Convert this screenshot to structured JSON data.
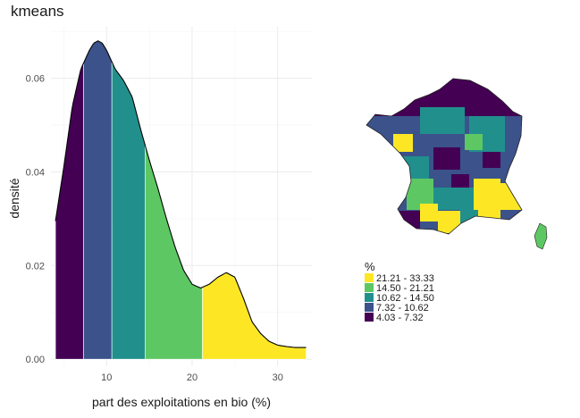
{
  "chart_data": [
    {
      "type": "area",
      "title": "kmeans",
      "xlabel": "part des exploitations en bio (%)",
      "ylabel": "densité",
      "xlim": [
        3.5,
        34.0
      ],
      "ylim": [
        -0.0015,
        0.071
      ],
      "x_ticks": [
        10,
        20,
        30
      ],
      "y_ticks": [
        0.0,
        0.02,
        0.04,
        0.06
      ],
      "y_tick_labels": [
        "0.00",
        "0.02",
        "0.04",
        "0.06"
      ],
      "grid": true,
      "series": [
        {
          "x": [
            4.03,
            5,
            6,
            7,
            8,
            8.5,
            9,
            9.5,
            10,
            11,
            12,
            13,
            14,
            15,
            16,
            17,
            18,
            19,
            20,
            21,
            22,
            23,
            24,
            25,
            26,
            27,
            28,
            29,
            30,
            31,
            32,
            33.33
          ],
          "y": [
            0.0295,
            0.041,
            0.054,
            0.062,
            0.066,
            0.0675,
            0.068,
            0.0675,
            0.066,
            0.062,
            0.0595,
            0.056,
            0.049,
            0.0425,
            0.0365,
            0.03,
            0.024,
            0.019,
            0.016,
            0.0152,
            0.016,
            0.0175,
            0.0185,
            0.0175,
            0.013,
            0.008,
            0.0055,
            0.0038,
            0.003,
            0.0027,
            0.0025,
            0.0025
          ]
        }
      ],
      "class_breaks": [
        4.03,
        7.32,
        10.62,
        14.5,
        21.21,
        33.33
      ],
      "class_colors": [
        "#440154",
        "#3b528b",
        "#21908d",
        "#5dc863",
        "#fde725"
      ]
    },
    {
      "type": "map",
      "legend": {
        "title": "%",
        "position": "bottom-left of map",
        "items": [
          {
            "label": "21.21  -  33.33",
            "color": "#fde725"
          },
          {
            "label": "14.50  -  21.21",
            "color": "#5dc863"
          },
          {
            "label": "10.62  -  14.50",
            "color": "#21908d"
          },
          {
            "label": "7.32  -  10.62",
            "color": "#3b528b"
          },
          {
            "label": "4.03  -  7.32",
            "color": "#440154"
          }
        ]
      }
    }
  ]
}
